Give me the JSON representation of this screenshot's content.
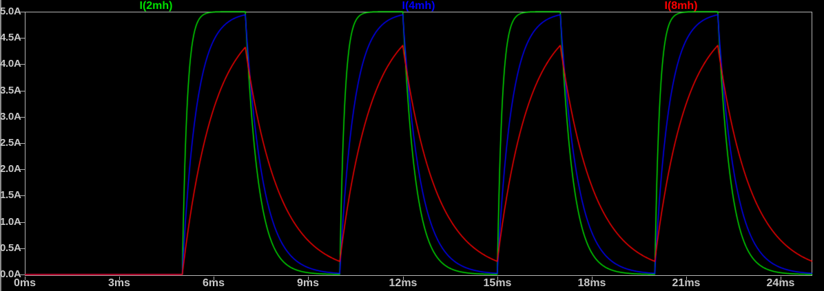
{
  "app": {
    "description": "waveform-viewer-plot-pane",
    "background_color": "#000000",
    "axis_color": "#b4b4b4",
    "label_color": "#c8c8c8"
  },
  "chart_data": {
    "type": "line",
    "title": "",
    "xlabel": "",
    "ylabel": "",
    "grid": "border-only",
    "legend_position": "top",
    "x_axis": {
      "unit": "ms",
      "min": 0,
      "max": 25,
      "tick_interval": 3,
      "tick_values": [
        0,
        3,
        6,
        9,
        12,
        15,
        18,
        21,
        24
      ],
      "tick_labels": [
        "0ms",
        "3ms",
        "6ms",
        "9ms",
        "12ms",
        "15ms",
        "18ms",
        "21ms",
        "24ms"
      ]
    },
    "y_axis": {
      "unit": "A",
      "min": 0,
      "max": 5,
      "tick_interval": 0.5,
      "tick_values": [
        5,
        4.5,
        4,
        3.5,
        3,
        2.5,
        2,
        1.5,
        1,
        0.5,
        0
      ],
      "tick_labels": [
        "5.0A",
        "4.5A",
        "4.0A",
        "3.5A",
        "3.0A",
        "2.5A",
        "2.0A",
        "1.5A",
        "1.0A",
        "0.5A",
        "0.0A"
      ]
    },
    "drive_pulse": {
      "first_rise_ms": 5,
      "on_time_ms": 2,
      "period_ms": 5,
      "pulse_count": 4,
      "target_current_A": 5
    },
    "series": [
      {
        "name": "I(2mh)",
        "color": "#00e000",
        "rise_tau_ms": 0.15,
        "decay_tau_ms": 0.4,
        "peak_A": 5.0,
        "sample_points_ms_A": [
          [
            0,
            0
          ],
          [
            5,
            0
          ],
          [
            5.3,
            4.3
          ],
          [
            5.6,
            4.9
          ],
          [
            6.3,
            5.0
          ],
          [
            7,
            5.0
          ],
          [
            7.6,
            1.1
          ],
          [
            8.2,
            0.25
          ],
          [
            9,
            0.03
          ],
          [
            10,
            0
          ],
          [
            12,
            5.0
          ],
          [
            15,
            0
          ],
          [
            17,
            5.0
          ],
          [
            20,
            0
          ],
          [
            22,
            5.0
          ],
          [
            25,
            0
          ]
        ]
      },
      {
        "name": "I(4mh)",
        "color": "#0000ff",
        "rise_tau_ms": 0.45,
        "decay_tau_ms": 0.55,
        "peak_A": 4.94,
        "sample_points_ms_A": [
          [
            0,
            0
          ],
          [
            5,
            0
          ],
          [
            5.5,
            3.67
          ],
          [
            6,
            4.45
          ],
          [
            7,
            4.94
          ],
          [
            7.4,
            2.4
          ],
          [
            8,
            0.8
          ],
          [
            9,
            0.13
          ],
          [
            10,
            0.02
          ],
          [
            12,
            4.94
          ],
          [
            15,
            0.02
          ],
          [
            17,
            4.94
          ],
          [
            20,
            0.02
          ],
          [
            22,
            4.94
          ],
          [
            25,
            0.02
          ]
        ]
      },
      {
        "name": "I(8mh)",
        "color": "#ff0000",
        "rise_tau_ms": 1.0,
        "decay_tau_ms": 1.05,
        "peak_A": 4.32,
        "sample_points_ms_A": [
          [
            0,
            0
          ],
          [
            5,
            0
          ],
          [
            6,
            3.16
          ],
          [
            7,
            4.32
          ],
          [
            8,
            1.67
          ],
          [
            8.65,
            0.68
          ],
          [
            10,
            0.25
          ],
          [
            12,
            4.36
          ],
          [
            15,
            0.25
          ],
          [
            17,
            4.36
          ],
          [
            20,
            0.25
          ],
          [
            22,
            4.36
          ],
          [
            25,
            0.25
          ]
        ]
      }
    ]
  }
}
